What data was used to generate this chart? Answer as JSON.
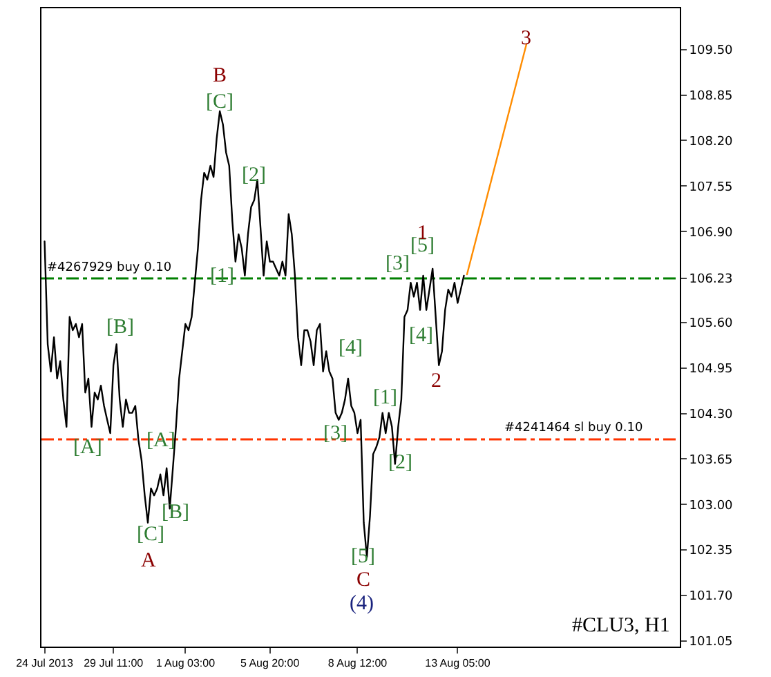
{
  "chart_data": {
    "type": "line",
    "categories": [
      "24 Jul 2013",
      null,
      null,
      null,
      null,
      null,
      null,
      null,
      null,
      null,
      null,
      null,
      null,
      null,
      null,
      null,
      null,
      null,
      null,
      null,
      null,
      null,
      "29 Jul 11:00",
      null,
      null,
      null,
      null,
      null,
      null,
      null,
      null,
      null,
      null,
      null,
      null,
      null,
      null,
      null,
      null,
      null,
      null,
      null,
      null,
      null,
      null,
      "1 Aug 03:00",
      null,
      null,
      null,
      null,
      null,
      null,
      null,
      null,
      null,
      null,
      null,
      null,
      null,
      null,
      null,
      null,
      null,
      null,
      null,
      null,
      null,
      null,
      null,
      null,
      null,
      null,
      "5 Aug 20:00",
      null,
      null,
      null,
      null,
      null,
      null,
      null,
      null,
      null,
      null,
      null,
      null,
      null,
      null,
      null,
      null,
      null,
      null,
      null,
      null,
      null,
      null,
      null,
      null,
      null,
      null,
      null,
      "8 Aug 12:00",
      null,
      null,
      null,
      null,
      null,
      null,
      null,
      null,
      null,
      null,
      null,
      null,
      null,
      null,
      null,
      null,
      null,
      null,
      null,
      null,
      null,
      null,
      null,
      null,
      null,
      null,
      null,
      null,
      null,
      null,
      null,
      "13 Aug 05:00",
      null,
      null,
      null,
      null,
      null,
      null,
      null,
      null,
      null,
      null,
      null,
      null,
      null,
      null,
      null,
      null,
      null,
      null,
      null,
      null,
      null,
      null,
      null,
      null,
      null,
      null,
      null,
      null,
      null,
      null,
      null,
      null,
      null,
      null,
      null,
      null,
      null,
      null,
      null,
      null,
      null,
      null,
      null,
      null,
      null,
      null,
      null,
      null,
      null,
      null,
      null,
      null,
      null,
      null,
      null,
      null,
      null,
      null,
      null,
      null,
      null,
      null,
      null,
      null,
      null,
      null,
      null,
      null,
      null,
      null
    ],
    "series": [
      {
        "color": "#000000",
        "values": [
          106.76,
          105.29,
          104.9,
          105.39,
          104.8,
          105.05,
          104.5,
          104.11,
          105.68,
          105.49,
          105.58,
          105.39,
          105.58,
          104.6,
          104.8,
          104.11,
          104.6,
          104.5,
          104.7,
          104.41,
          104.21,
          104.02,
          104.99,
          105.29,
          104.5,
          104.11,
          104.5,
          104.31,
          104.31,
          104.41,
          103.92,
          103.63,
          103.13,
          102.74,
          103.23,
          103.13,
          103.23,
          103.43,
          103.13,
          103.52,
          102.94,
          103.52,
          104.11,
          104.8,
          105.19,
          105.58,
          105.49,
          105.68,
          106.17,
          106.66,
          107.35,
          107.74,
          107.64,
          107.84,
          107.68,
          108.23,
          108.62,
          108.43,
          108.03,
          107.84,
          107.05,
          106.47,
          106.86,
          106.66,
          106.27,
          106.86,
          107.25,
          107.35,
          107.64,
          106.96,
          106.27,
          106.76,
          106.47,
          106.47,
          106.37,
          106.27,
          106.47,
          106.27,
          107.15,
          106.86,
          106.27,
          105.39,
          104.99,
          105.49,
          105.49,
          105.33,
          104.99,
          105.49,
          105.58,
          104.9,
          105.19,
          104.9,
          104.8,
          104.31,
          104.21,
          104.31,
          104.5,
          104.8,
          104.41,
          104.31,
          104.02,
          104.21,
          102.74,
          102.25,
          102.84,
          103.72,
          103.82,
          103.96,
          104.31,
          104.02,
          104.31,
          104.11,
          103.58,
          104.11,
          104.5,
          105.68,
          105.78,
          106.17,
          105.97,
          106.17,
          105.78,
          106.27,
          105.78,
          106.07,
          106.37,
          105.68,
          104.99,
          105.19,
          105.78,
          106.07,
          105.97,
          106.17,
          105.88,
          106.07,
          106.27,
          null,
          null,
          null,
          null,
          null,
          null,
          null,
          null,
          null,
          null,
          null,
          null,
          null,
          null,
          null,
          null,
          null,
          null,
          null,
          null,
          null,
          null,
          null,
          null,
          null,
          null,
          null,
          null,
          null,
          null,
          null,
          null,
          null,
          null,
          null,
          null,
          null,
          null,
          null,
          null,
          null,
          null,
          null,
          null,
          null,
          null,
          null,
          null,
          null,
          null,
          null,
          null,
          null,
          null,
          null,
          null,
          null,
          null,
          null,
          null,
          null,
          null,
          null,
          null,
          null,
          null,
          null,
          null
        ]
      },
      {
        "color": "#ff8c00",
        "values": [
          null,
          null,
          null,
          null,
          null,
          null,
          null,
          null,
          null,
          null,
          null,
          null,
          null,
          null,
          null,
          null,
          null,
          null,
          null,
          null,
          null,
          null,
          null,
          null,
          null,
          null,
          null,
          null,
          null,
          null,
          null,
          null,
          null,
          null,
          null,
          null,
          null,
          null,
          null,
          null,
          null,
          null,
          null,
          null,
          null,
          null,
          null,
          null,
          null,
          null,
          null,
          null,
          null,
          null,
          null,
          null,
          null,
          null,
          null,
          null,
          null,
          null,
          null,
          null,
          null,
          null,
          null,
          null,
          null,
          null,
          null,
          null,
          null,
          null,
          null,
          null,
          null,
          null,
          null,
          null,
          null,
          null,
          null,
          null,
          null,
          null,
          null,
          null,
          null,
          null,
          null,
          null,
          null,
          null,
          null,
          null,
          null,
          null,
          null,
          null,
          null,
          null,
          null,
          null,
          null,
          null,
          null,
          null,
          null,
          null,
          null,
          null,
          null,
          null,
          null,
          null,
          null,
          null,
          null,
          null,
          null,
          null,
          null,
          null,
          null,
          null,
          null,
          null,
          null,
          null,
          null,
          null,
          null,
          null,
          null,
          106.29,
          null,
          null,
          null,
          null,
          null,
          null,
          null,
          null,
          null,
          null,
          null,
          null,
          null,
          null,
          null,
          null,
          null,
          null,
          109.58,
          null,
          null,
          null,
          null,
          null,
          null,
          null,
          null,
          null,
          null,
          null,
          null,
          null,
          null,
          null,
          null,
          null,
          null,
          null,
          null,
          null,
          null,
          null,
          null,
          null,
          null,
          null,
          null,
          null,
          null,
          null,
          null,
          null,
          null,
          null,
          null,
          null,
          null,
          null,
          null,
          null,
          null,
          null,
          null,
          null,
          null,
          null,
          null
        ]
      }
    ],
    "ylim": [
      100.97,
      110.09
    ],
    "yticks": [
      {
        "value": 109.5,
        "label": "109.50"
      },
      {
        "value": 108.85,
        "label": "108.85"
      },
      {
        "value": 108.2,
        "label": "108.20"
      },
      {
        "value": 107.55,
        "label": "107.55"
      },
      {
        "value": 106.9,
        "label": "106.90"
      },
      {
        "value": 106.23,
        "label": "106.23"
      },
      {
        "value": 105.6,
        "label": "105.60"
      },
      {
        "value": 104.95,
        "label": "104.95"
      },
      {
        "value": 104.3,
        "label": "104.30"
      },
      {
        "value": 103.65,
        "label": "103.65"
      },
      {
        "value": 103.0,
        "label": "103.00"
      },
      {
        "value": 102.35,
        "label": "102.35"
      },
      {
        "value": 101.7,
        "label": "101.70"
      },
      {
        "value": 101.05,
        "label": "101.05"
      }
    ],
    "ref_lines": [
      {
        "axis": "y",
        "value": 106.23,
        "label": "#4267929 buy 0.10",
        "color": "#008000",
        "line_style": "dashdot"
      },
      {
        "axis": "y",
        "value": 103.93,
        "label": "#4241464 sl buy 0.10",
        "color": "#ff3300",
        "line_style": "dashdot"
      }
    ],
    "grid": false,
    "annotations": [
      "B",
      "[C]",
      "[2]",
      "[1]",
      "[B]",
      "[A]",
      "[A]",
      "[B]",
      "[C]",
      "A",
      "[4]",
      "[3]",
      "[1]",
      "[5]",
      "C",
      "(4)",
      "[2]",
      "[3]",
      "[5]",
      "1",
      "[4]",
      "2",
      "3",
      "#CLU3, H1"
    ]
  }
}
